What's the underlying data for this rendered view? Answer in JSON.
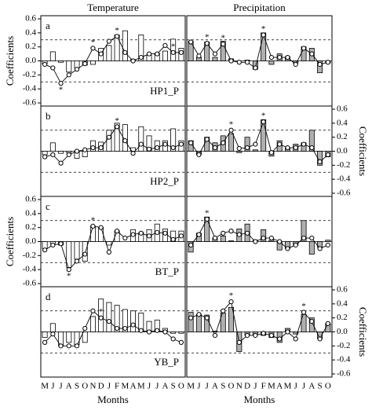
{
  "chart_data": [
    {
      "type": "bar",
      "title": "Temperature",
      "panel": "a",
      "site": "HP1_P",
      "ylabel": "Coefficients",
      "y_axis_side": "left",
      "ylim": [
        -0.6,
        0.6
      ],
      "yticks": [
        -0.6,
        -0.4,
        -0.2,
        {
          "value": 0,
          "label": "0.0"
        },
        0.2,
        0.4,
        0.6
      ],
      "hlines": [
        0.3,
        -0.3
      ],
      "series": [
        {
          "type": "bar",
          "color": "#ffffff",
          "values": [
            -0.04,
            0.13,
            -0.02,
            -0.16,
            -0.1,
            -0.06,
            -0.05,
            0.18,
            0.22,
            0.37,
            0.43,
            0.02,
            0.37,
            0.08,
            0.11,
            0.14,
            0.31,
            0.18
          ]
        },
        {
          "type": "line",
          "color": "#000000",
          "values": [
            -0.05,
            -0.1,
            -0.32,
            -0.2,
            -0.12,
            -0.04,
            0.18,
            0.1,
            0.28,
            0.35,
            0.12,
            0,
            0.05,
            0.1,
            0.1,
            0.22,
            0.12,
            0.12
          ],
          "value_labels": [
            null,
            null,
            "*",
            null,
            null,
            null,
            "*",
            null,
            null,
            "*",
            null,
            null,
            null,
            null,
            null,
            null,
            "*",
            null
          ]
        }
      ]
    },
    {
      "type": "bar",
      "title": "Precipitation",
      "ylim": [
        -0.6,
        0.6
      ],
      "hlines": [
        0.3,
        -0.3
      ],
      "series": [
        {
          "type": "bar",
          "color": "#b0b0b0",
          "values": [
            0.28,
            0.05,
            0.27,
            0.05,
            0.28,
            0.03,
            0,
            0.01,
            -0.12,
            0.4,
            -0.05,
            0.1,
            0.06,
            -0.03,
            0.2,
            0.18,
            -0.17,
            -0.03
          ]
        },
        {
          "type": "line",
          "color": "#000000",
          "values": [
            0.27,
            0.07,
            0.25,
            0.1,
            0.24,
            0,
            -0.02,
            -0.02,
            -0.1,
            0.37,
            0.05,
            0.05,
            0.05,
            -0.05,
            0.18,
            0.1,
            -0.05,
            -0.02
          ],
          "value_labels": [
            null,
            null,
            "*",
            null,
            "*",
            null,
            null,
            null,
            null,
            "*",
            null,
            null,
            null,
            null,
            null,
            null,
            null,
            null
          ]
        }
      ]
    },
    {
      "type": "bar",
      "panel": "b",
      "site": "HP2_P",
      "ylim": [
        -0.6,
        0.6
      ],
      "hlines": [
        0.3,
        -0.3
      ],
      "series": [
        {
          "type": "bar",
          "color": "#ffffff",
          "values": [
            -0.05,
            0.12,
            -0.03,
            -0.02,
            -0.1,
            -0.08,
            0.15,
            0.13,
            0.3,
            0.4,
            0.38,
            0.05,
            0.35,
            0.22,
            0.15,
            0.15,
            0.32,
            0.15
          ]
        },
        {
          "type": "line",
          "color": "#000000",
          "values": [
            -0.08,
            -0.05,
            -0.17,
            -0.05,
            0,
            0.02,
            0.05,
            0.05,
            0.2,
            0.35,
            0.15,
            -0.03,
            0.1,
            0.03,
            0.05,
            0.1,
            0.05,
            0.1
          ],
          "value_labels": [
            null,
            null,
            null,
            null,
            null,
            null,
            null,
            null,
            null,
            "*",
            null,
            null,
            null,
            null,
            null,
            null,
            null,
            null
          ]
        }
      ]
    },
    {
      "type": "bar",
      "ylabel": "Coefficients",
      "y_axis_side": "right",
      "ylim": [
        -0.6,
        0.6
      ],
      "yticks": [
        -0.6,
        -0.4,
        -0.2,
        {
          "value": 0,
          "label": "0.0"
        },
        0.2,
        0.4,
        0.6
      ],
      "hlines": [
        0.3,
        -0.3
      ],
      "series": [
        {
          "type": "bar",
          "color": "#b0b0b0",
          "values": [
            0.15,
            -0.05,
            0.2,
            0.12,
            0.22,
            0.25,
            -0.02,
            0.2,
            0.02,
            0.45,
            -0.07,
            0.15,
            0.05,
            0.1,
            0.12,
            0.3,
            -0.2,
            -0.08
          ]
        },
        {
          "type": "line",
          "color": "#000000",
          "values": [
            0.12,
            -0.05,
            0.17,
            0.05,
            0.12,
            0.3,
            0.04,
            0.05,
            0.1,
            0.42,
            -0.02,
            0.1,
            0.05,
            0.05,
            0.1,
            0.05,
            -0.15,
            -0.05
          ],
          "value_labels": [
            null,
            null,
            null,
            null,
            null,
            "*",
            null,
            null,
            null,
            "*",
            null,
            null,
            null,
            null,
            null,
            null,
            null,
            null
          ]
        }
      ]
    },
    {
      "type": "bar",
      "panel": "c",
      "site": "BT_P",
      "ylabel": "Coefficients",
      "y_axis_side": "left",
      "ylim": [
        -0.6,
        0.6
      ],
      "yticks": [
        -0.6,
        -0.4,
        -0.2,
        {
          "value": 0,
          "label": "0.0"
        },
        0.2,
        0.4,
        0.6
      ],
      "hlines": [
        0.3,
        -0.3
      ],
      "series": [
        {
          "type": "bar",
          "color": "#ffffff",
          "values": [
            -0.1,
            -0.03,
            -0.05,
            -0.37,
            -0.25,
            -0.28,
            0.22,
            0.2,
            -0.05,
            0.15,
            0,
            0.17,
            0.13,
            0.17,
            0.25,
            0.18,
            0.15,
            0.15
          ]
        },
        {
          "type": "line",
          "color": "#000000",
          "values": [
            -0.12,
            -0.05,
            -0.03,
            -0.4,
            -0.28,
            -0.18,
            0.22,
            0.2,
            -0.15,
            0.15,
            0.05,
            0.1,
            0.12,
            0.08,
            0.13,
            0.12,
            0.03,
            0.08
          ],
          "value_labels": [
            null,
            null,
            null,
            "*",
            null,
            null,
            "*",
            null,
            null,
            null,
            null,
            null,
            null,
            null,
            null,
            null,
            null,
            null
          ]
        }
      ]
    },
    {
      "type": "bar",
      "ylim": [
        -0.6,
        0.6
      ],
      "hlines": [
        0.3,
        -0.3
      ],
      "series": [
        {
          "type": "bar",
          "color": "#b0b0b0",
          "values": [
            -0.15,
            0.12,
            0.35,
            0.05,
            0.08,
            0.01,
            0.18,
            0.25,
            0.02,
            0.17,
            0.02,
            -0.12,
            -0.1,
            -0.05,
            0.3,
            -0.18,
            -0.08,
            0.02
          ]
        },
        {
          "type": "line",
          "color": "#000000",
          "values": [
            -0.05,
            0.1,
            0.32,
            0.05,
            0.12,
            0.15,
            0.1,
            0.12,
            0,
            0.05,
            0.05,
            0,
            -0.1,
            -0.05,
            0.05,
            0.05,
            -0.1,
            -0.05
          ],
          "value_labels": [
            null,
            null,
            "*",
            null,
            null,
            null,
            null,
            null,
            null,
            null,
            null,
            null,
            null,
            null,
            null,
            null,
            null,
            null
          ]
        }
      ]
    },
    {
      "type": "bar",
      "panel": "d",
      "site": "YB_P",
      "xlabel": "Months",
      "categories": [
        "M",
        "J",
        "J",
        "A",
        "S",
        "O",
        "N",
        "D",
        "J",
        "F",
        "M",
        "A",
        "M",
        "J",
        "J",
        "A",
        "S",
        "O"
      ],
      "ylim": [
        -0.6,
        0.6
      ],
      "hlines": [
        0.3,
        -0.3
      ],
      "series": [
        {
          "type": "bar",
          "color": "#ffffff",
          "values": [
            -0.08,
            0.12,
            -0.2,
            -0.15,
            -0.18,
            -0.15,
            0.22,
            0.47,
            0.42,
            0.38,
            0.32,
            0.3,
            0.27,
            0.15,
            0.17,
            0.05,
            -0.02,
            -0.02
          ]
        },
        {
          "type": "line",
          "color": "#000000",
          "values": [
            -0.15,
            -0.03,
            -0.2,
            -0.2,
            -0.2,
            0.05,
            0.3,
            0.2,
            0.15,
            0.05,
            0.05,
            0.1,
            0.02,
            0,
            0.02,
            0,
            -0.1,
            -0.15
          ],
          "value_labels": [
            null,
            null,
            null,
            null,
            null,
            null,
            null,
            "*",
            null,
            null,
            null,
            null,
            null,
            null,
            null,
            null,
            null,
            null
          ]
        }
      ]
    },
    {
      "type": "bar",
      "xlabel": "Months",
      "categories": [
        "M",
        "J",
        "J",
        "A",
        "S",
        "O",
        "N",
        "D",
        "J",
        "F",
        "M",
        "A",
        "M",
        "J",
        "J",
        "A",
        "S",
        "O"
      ],
      "ylabel": "Coefficients",
      "y_axis_side": "right",
      "ylim": [
        -0.6,
        0.6
      ],
      "yticks": [
        -0.6,
        -0.4,
        -0.2,
        {
          "value": 0,
          "label": "0.0"
        },
        0.2,
        0.4,
        0.6
      ],
      "hlines": [
        0.3,
        -0.3
      ],
      "series": [
        {
          "type": "bar",
          "color": "#b0b0b0",
          "values": [
            0.28,
            0.25,
            0.24,
            0.01,
            0.27,
            0.35,
            -0.28,
            -0.05,
            -0.04,
            -0.05,
            -0.08,
            -0.15,
            0.05,
            -0.03,
            0.25,
            0.2,
            -0.1,
            0.12
          ]
        },
        {
          "type": "line",
          "color": "#000000",
          "values": [
            0.2,
            0.25,
            0.2,
            -0.05,
            0.3,
            0.43,
            -0.15,
            -0.05,
            -0.05,
            -0.02,
            -0.05,
            -0.1,
            0,
            -0.1,
            0.28,
            0.15,
            -0.1,
            0.12
          ],
          "value_labels": [
            null,
            null,
            null,
            null,
            null,
            "*",
            null,
            null,
            null,
            null,
            null,
            null,
            null,
            null,
            "*",
            null,
            null,
            null
          ]
        }
      ]
    }
  ]
}
